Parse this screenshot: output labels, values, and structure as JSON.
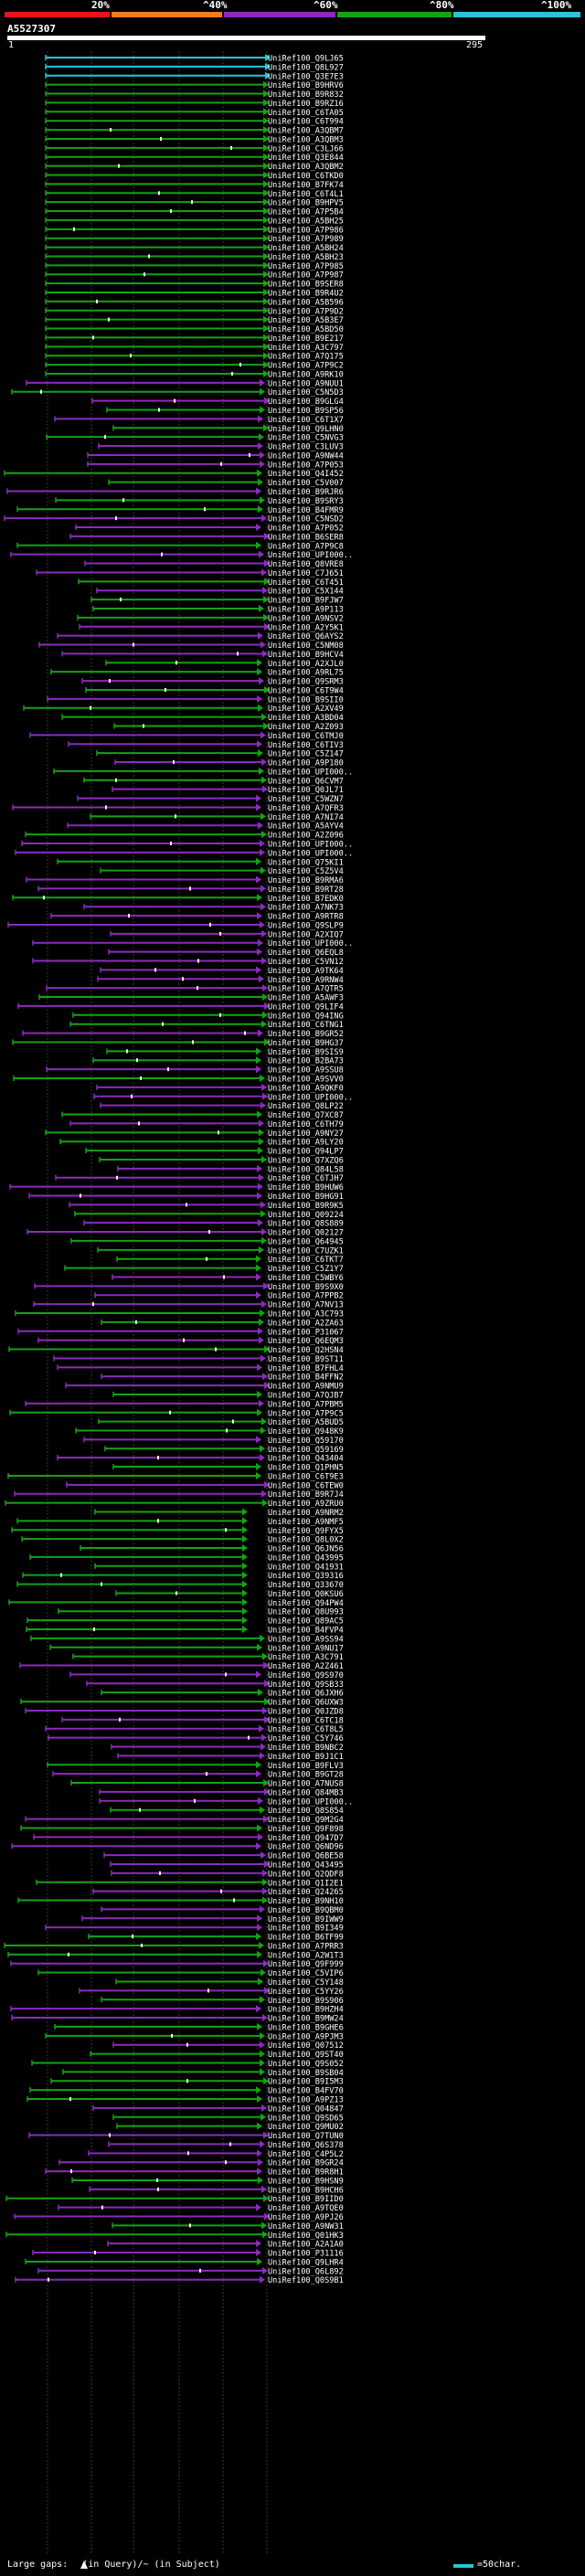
{
  "header": {
    "percent_labels": [
      "20%",
      "^40%",
      "^60%",
      "^80%",
      "^100%"
    ],
    "colors": [
      "#e8131b",
      "#f07d1e",
      "#8b2bbd",
      "#13a314",
      "#2bc5d8"
    ]
  },
  "query": {
    "name": "A5527307",
    "start": "1",
    "end": "295"
  },
  "footer": {
    "gaps_label": "Large gaps: ",
    "in_query_label": "(in Query)",
    "in_subject_label": "/~ (in Subject)",
    "scale_label": "=50char."
  },
  "hits": {
    "labels": [
      "UniRef100_Q9LJ65",
      "UniRef100_Q8L927",
      "UniRef100_Q3E7E3",
      "UniRef100_B9HRV6",
      "UniRef100_B9R832",
      "UniRef100_B9RZ16",
      "UniRef100_C6TA05",
      "UniRef100_C6T994",
      "UniRef100_A3QBM7",
      "UniRef100_A3QBM3",
      "UniRef100_C3LJ66",
      "UniRef100_Q3E844",
      "UniRef100_A3QBM2",
      "UniRef100_C6TKD0",
      "UniRef100_B7FK74",
      "UniRef100_C6T4L1",
      "UniRef100_B9HPV5",
      "UniRef100_A7P5B4",
      "UniRef100_A5BH25",
      "UniRef100_A7P986",
      "UniRef100_A7P989",
      "UniRef100_A5BH24",
      "UniRef100_A5BH23",
      "UniRef100_A7P985",
      "UniRef100_A7P987",
      "UniRef100_B9SER8",
      "UniRef100_B9R4U2",
      "UniRef100_A5B596",
      "UniRef100_A7P9D2",
      "UniRef100_A5B3E7",
      "UniRef100_A5BD50",
      "UniRef100_B9E217",
      "UniRef100_A3C797",
      "UniRef100_A7Q175",
      "UniRef100_A7P9C2",
      "UniRef100_A9RK10",
      "UniRef100_A9NUU1",
      "UniRef100_C5N5D3",
      "UniRef100_B9GLG4",
      "UniRef100_B9SP56",
      "UniRef100_C6T1X7",
      "UniRef100_Q9LHN0",
      "UniRef100_C5NVG3",
      "UniRef100_C3LUV3",
      "UniRef100_A9NW44",
      "UniRef100_A7P053",
      "UniRef100_Q4I452",
      "UniRef100_C5V007",
      "UniRef100_B9RJR6",
      "UniRef100_B9SRY3",
      "UniRef100_B4FMR9",
      "UniRef100_C5NSD2",
      "UniRef100_A7P052",
      "UniRef100_B6SER8",
      "UniRef100_A7P9C8",
      "UniRef100_UPI000..",
      "UniRef100_Q8VRE8",
      "UniRef100_C7J651",
      "UniRef100_C6T451",
      "UniRef100_C5X144",
      "UniRef100_B9FJW7",
      "UniRef100_A9P113",
      "UniRef100_A9NSV2",
      "UniRef100_A2Y5K1",
      "UniRef100_Q6AYS2",
      "UniRef100_C5NM08",
      "UniRef100_B9HCV4",
      "UniRef100_A2XJL0",
      "UniRef100_A9RL75",
      "UniRef100_Q9SRM3",
      "UniRef100_C6T9W4",
      "UniRef100_B9SII0",
      "UniRef100_A2XV49",
      "UniRef100_A3BD04",
      "UniRef100_A2Z093",
      "UniRef100_C6TMJ0",
      "UniRef100_C6TIV3",
      "UniRef100_C5Z147",
      "UniRef100_A9P180",
      "UniRef100_UPI000..",
      "UniRef100_Q6CVM7",
      "UniRef100_Q0JL71",
      "UniRef100_C5WZN7",
      "UniRef100_A7QFR3",
      "UniRef100_A7NI74",
      "UniRef100_A5AYV4",
      "UniRef100_A2Z096",
      "UniRef100_UPI000..",
      "UniRef100_UPI000..",
      "UniRef100_Q75KI1",
      "UniRef100_C5Z5V4",
      "UniRef100_B9RMA6",
      "UniRef100_B9RT28",
      "UniRef100_B7EDK0",
      "UniRef100_A7NK73",
      "UniRef100_A9RTR8",
      "UniRef100_Q9SLP9",
      "UniRef100_A2XIQ7",
      "UniRef100_UPI000..",
      "UniRef100_Q6EQL8",
      "UniRef100_C5VN12",
      "UniRef100_A9TK64",
      "UniRef100_A9RNW4",
      "UniRef100_A7QTR5",
      "UniRef100_A5AWF3",
      "UniRef100_Q9LIF4",
      "UniRef100_Q94ING",
      "UniRef100_C6TNG1",
      "UniRef100_B9GR52",
      "UniRef100_B9HG37",
      "UniRef100_B9SIS9",
      "UniRef100_B2BA73",
      "UniRef100_A9SSU8",
      "UniRef100_A9SVV0",
      "UniRef100_A9QKF0",
      "UniRef100_UPI000..",
      "UniRef100_Q8LP22",
      "UniRef100_Q7XC87",
      "UniRef100_C6TH79",
      "UniRef100_A9NY27",
      "UniRef100_A9LY20",
      "UniRef100_Q94LP7",
      "UniRef100_Q7XZQ6",
      "UniRef100_Q84L58",
      "UniRef100_C6TJH7",
      "UniRef100_B9HUW6",
      "UniRef100_B9HG91",
      "UniRef100_B9R9K5",
      "UniRef100_Q09224",
      "UniRef100_Q8S889",
      "UniRef100_Q02127",
      "UniRef100_Q64945",
      "UniRef100_C7UZK1",
      "UniRef100_C6TKT7",
      "UniRef100_C5Z1Y7",
      "UniRef100_C5WBY6",
      "UniRef100_B9S9X0",
      "UniRef100_A7PPB2",
      "UniRef100_A7NV13",
      "UniRef100_A3C793",
      "UniRef100_A2ZA63",
      "UniRef100_P31067",
      "UniRef100_Q6EQM3",
      "UniRef100_Q2HSN4",
      "UniRef100_B9ST11",
      "UniRef100_B7FHL4",
      "UniRef100_B4FFN2",
      "UniRef100_A9NMU9",
      "UniRef100_A7QJB7",
      "UniRef100_A7PBM5",
      "UniRef100_A7P9C5",
      "UniRef100_A5BUD5",
      "UniRef100_Q948K9",
      "UniRef100_Q59170",
      "UniRef100_Q59169",
      "UniRef100_Q43404",
      "UniRef100_Q1PHN5",
      "UniRef100_C6T9E3",
      "UniRef100_C6TEW0",
      "UniRef100_B9R7J4",
      "UniRef100_A9ZRU0",
      "UniRef100_A9NRM2",
      "UniRef100_A9NMF5",
      "UniRef100_Q9FYX5",
      "UniRef100_Q8L0X2",
      "UniRef100_Q6JN56",
      "UniRef100_Q43995",
      "UniRef100_Q41931",
      "UniRef100_Q39316",
      "UniRef100_Q33670",
      "UniRef100_Q0KSU6",
      "UniRef100_Q94PW4",
      "UniRef100_Q8U993",
      "UniRef100_Q89AC5",
      "UniRef100_B4FVP4",
      "UniRef100_A9SS94",
      "UniRef100_A9NU17",
      "UniRef100_A3C791",
      "UniRef100_A2Z461",
      "UniRef100_Q9S970",
      "UniRef100_Q9SB33",
      "UniRef100_Q6JXH6",
      "UniRef100_Q6UXW3",
      "UniRef100_Q0JZD8",
      "UniRef100_C6TC18",
      "UniRef100_C6T8L5",
      "UniRef100_C5Y746",
      "UniRef100_B9NBC2",
      "UniRef100_B9J1C1",
      "UniRef100_B9FLV3",
      "UniRef100_B9GT28",
      "UniRef100_A7NUS8",
      "UniRef100_Q84MB3",
      "UniRef100_UPI000..",
      "UniRef100_Q8S854",
      "UniRef100_Q9M2G4",
      "UniRef100_Q9F898",
      "UniRef100_Q947D7",
      "UniRef100_Q6ND96",
      "UniRef100_Q6BE58",
      "UniRef100_Q43495",
      "UniRef100_Q2QDF8",
      "UniRef100_Q1I2E1",
      "UniRef100_Q24265",
      "UniRef100_B9NH10",
      "UniRef100_B9QBM0",
      "UniRef100_B9IWW9",
      "UniRef100_B9I349",
      "UniRef100_B6TF99",
      "UniRef100_A7PRR3",
      "UniRef100_A2W1T3",
      "UniRef100_Q9F999",
      "UniRef100_C5VIP6",
      "UniRef100_C5Y148",
      "UniRef100_C5YY26",
      "UniRef100_B9S906",
      "UniRef100_B9HZH4",
      "UniRef100_B9MW24",
      "UniRef100_B9GHE6",
      "UniRef100_A9PJM3",
      "UniRef100_Q07512",
      "UniRef100_Q9ST40",
      "UniRef100_Q9S052",
      "UniRef100_B9SB04",
      "UniRef100_B9I5M3",
      "UniRef100_B4FV70",
      "UniRef100_A9PZ13",
      "UniRef100_Q04847",
      "UniRef100_Q9SD65",
      "UniRef100_Q9MU02",
      "UniRef100_Q7TUN0",
      "UniRef100_Q6S378",
      "UniRef100_C4P5L2",
      "UniRef100_B9GR24",
      "UniRef100_B9R8H1",
      "UniRef100_B9HSN9",
      "UniRef100_B9HCH6",
      "UniRef100_B9IID0",
      "UniRef100_A9TQE0",
      "UniRef100_A9PJ26",
      "UniRef100_A9NW31",
      "UniRef100_Q01HK3",
      "UniRef100_A2A1A0",
      "UniRef100_P31116",
      "UniRef100_Q9LHR4",
      "UniRef100_Q6L892",
      "UniRef100_Q0S9B1"
    ]
  }
}
